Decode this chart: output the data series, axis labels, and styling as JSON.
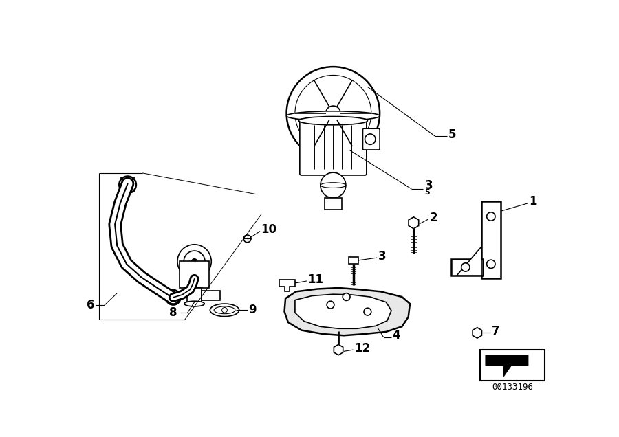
{
  "background_color": "#ffffff",
  "line_color": "#000000",
  "figure_width": 9.0,
  "figure_height": 6.36,
  "dpi": 100,
  "catalog_number": "00133196"
}
